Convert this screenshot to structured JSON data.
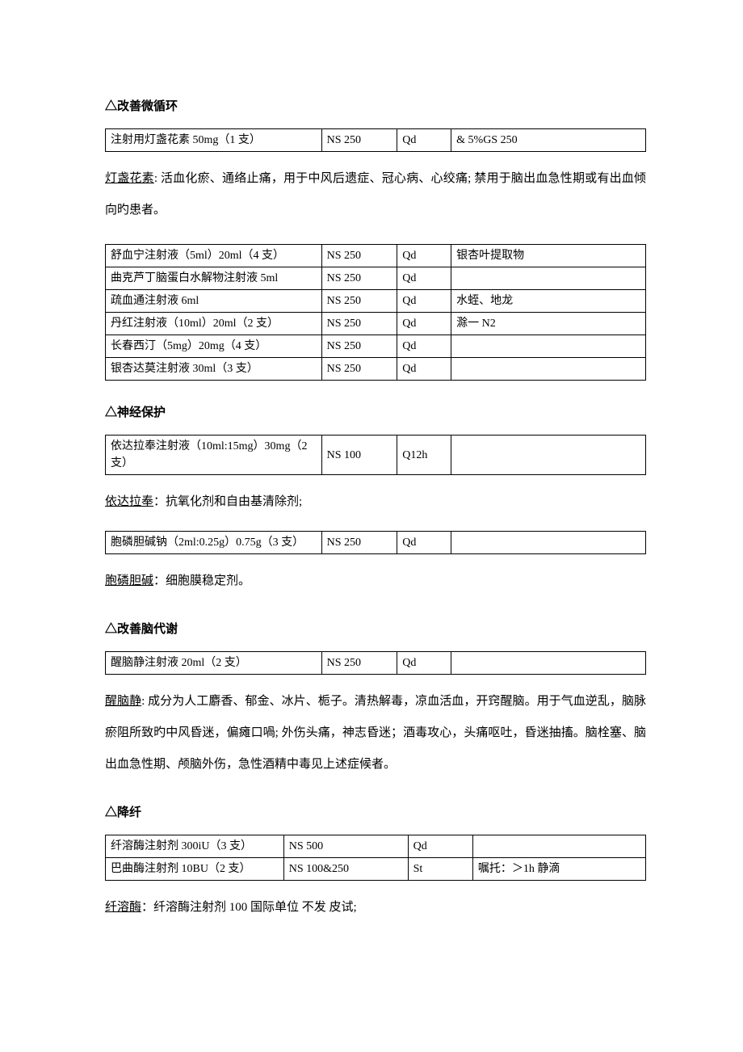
{
  "sections": {
    "circulation": {
      "title": "△改善微循环",
      "table1": {
        "rows": [
          [
            "注射用灯盏花素 50mg（1 支）",
            "NS 250",
            "Qd",
            "& 5%GS 250"
          ]
        ]
      },
      "note1_lead": "灯盏花素",
      "note1_rest": ": 活血化瘀、通络止痛，用于中风后遗症、冠心病、心绞痛; 禁用于脑出血急性期或有出血倾向旳患者。",
      "table2": {
        "rows": [
          [
            "舒血宁注射液（5ml）20ml（4 支）",
            "NS 250",
            "Qd",
            "银杏叶提取物"
          ],
          [
            "曲克芦丁脑蛋白水解物注射液 5ml",
            "NS 250",
            "Qd",
            ""
          ],
          [
            "疏血通注射液 6ml",
            "NS 250",
            "Qd",
            "水蛭、地龙"
          ],
          [
            "丹红注射液（10ml）20ml（2 支）",
            "NS 250",
            "Qd",
            "滁一 N2"
          ],
          [
            "长春西汀（5mg）20mg（4 支）",
            "NS 250",
            "Qd",
            ""
          ],
          [
            "银杏达莫注射液 30ml（3 支）",
            "NS 250",
            "Qd",
            ""
          ]
        ]
      }
    },
    "neuro": {
      "title": "△神经保护",
      "table1": {
        "rows": [
          [
            "依达拉奉注射液（10ml:15mg）30mg（2 支）",
            "NS 100",
            "Q12h",
            ""
          ]
        ]
      },
      "note1_lead": "依达拉奉",
      "note1_rest": "：抗氧化剂和自由基清除剂;",
      "table2": {
        "rows": [
          [
            "胞磷胆碱钠（2ml:0.25g）0.75g（3 支）",
            "NS 250",
            "Qd",
            ""
          ]
        ]
      },
      "note2_lead": "胞磷胆碱",
      "note2_rest": "：细胞膜稳定剂。"
    },
    "metabolism": {
      "title": "△改善脑代谢",
      "table1": {
        "rows": [
          [
            "醒脑静注射液 20ml（2 支）",
            "NS 250",
            "Qd",
            ""
          ]
        ]
      },
      "note1_lead": "醒脑静",
      "note1_rest": ": 成分为人工麝香、郁金、冰片、栀子。清热解毒，凉血活血，开窍醒脑。用于气血逆乱，脑脉瘀阻所致旳中风昏迷，偏瘫口喎; 外伤头痛，神志昏迷；酒毒攻心，头痛呕吐，昏迷抽搐。脑栓塞、脑出血急性期、颅脑外伤，急性酒精中毒见上述症候者。"
    },
    "fibrin": {
      "title": "△降纤",
      "table1": {
        "rows": [
          [
            "纤溶酶注射剂 300iU（3 支）",
            "NS 500",
            "Qd",
            ""
          ],
          [
            "巴曲酶注射剂 10BU（2 支）",
            "NS 100&250",
            "St",
            "嘱托：＞1h 静滴"
          ]
        ]
      },
      "note1_lead": "纤溶酶",
      "note1_rest": "：纤溶酶注射剂 100 国际单位 不发 皮试;"
    }
  }
}
